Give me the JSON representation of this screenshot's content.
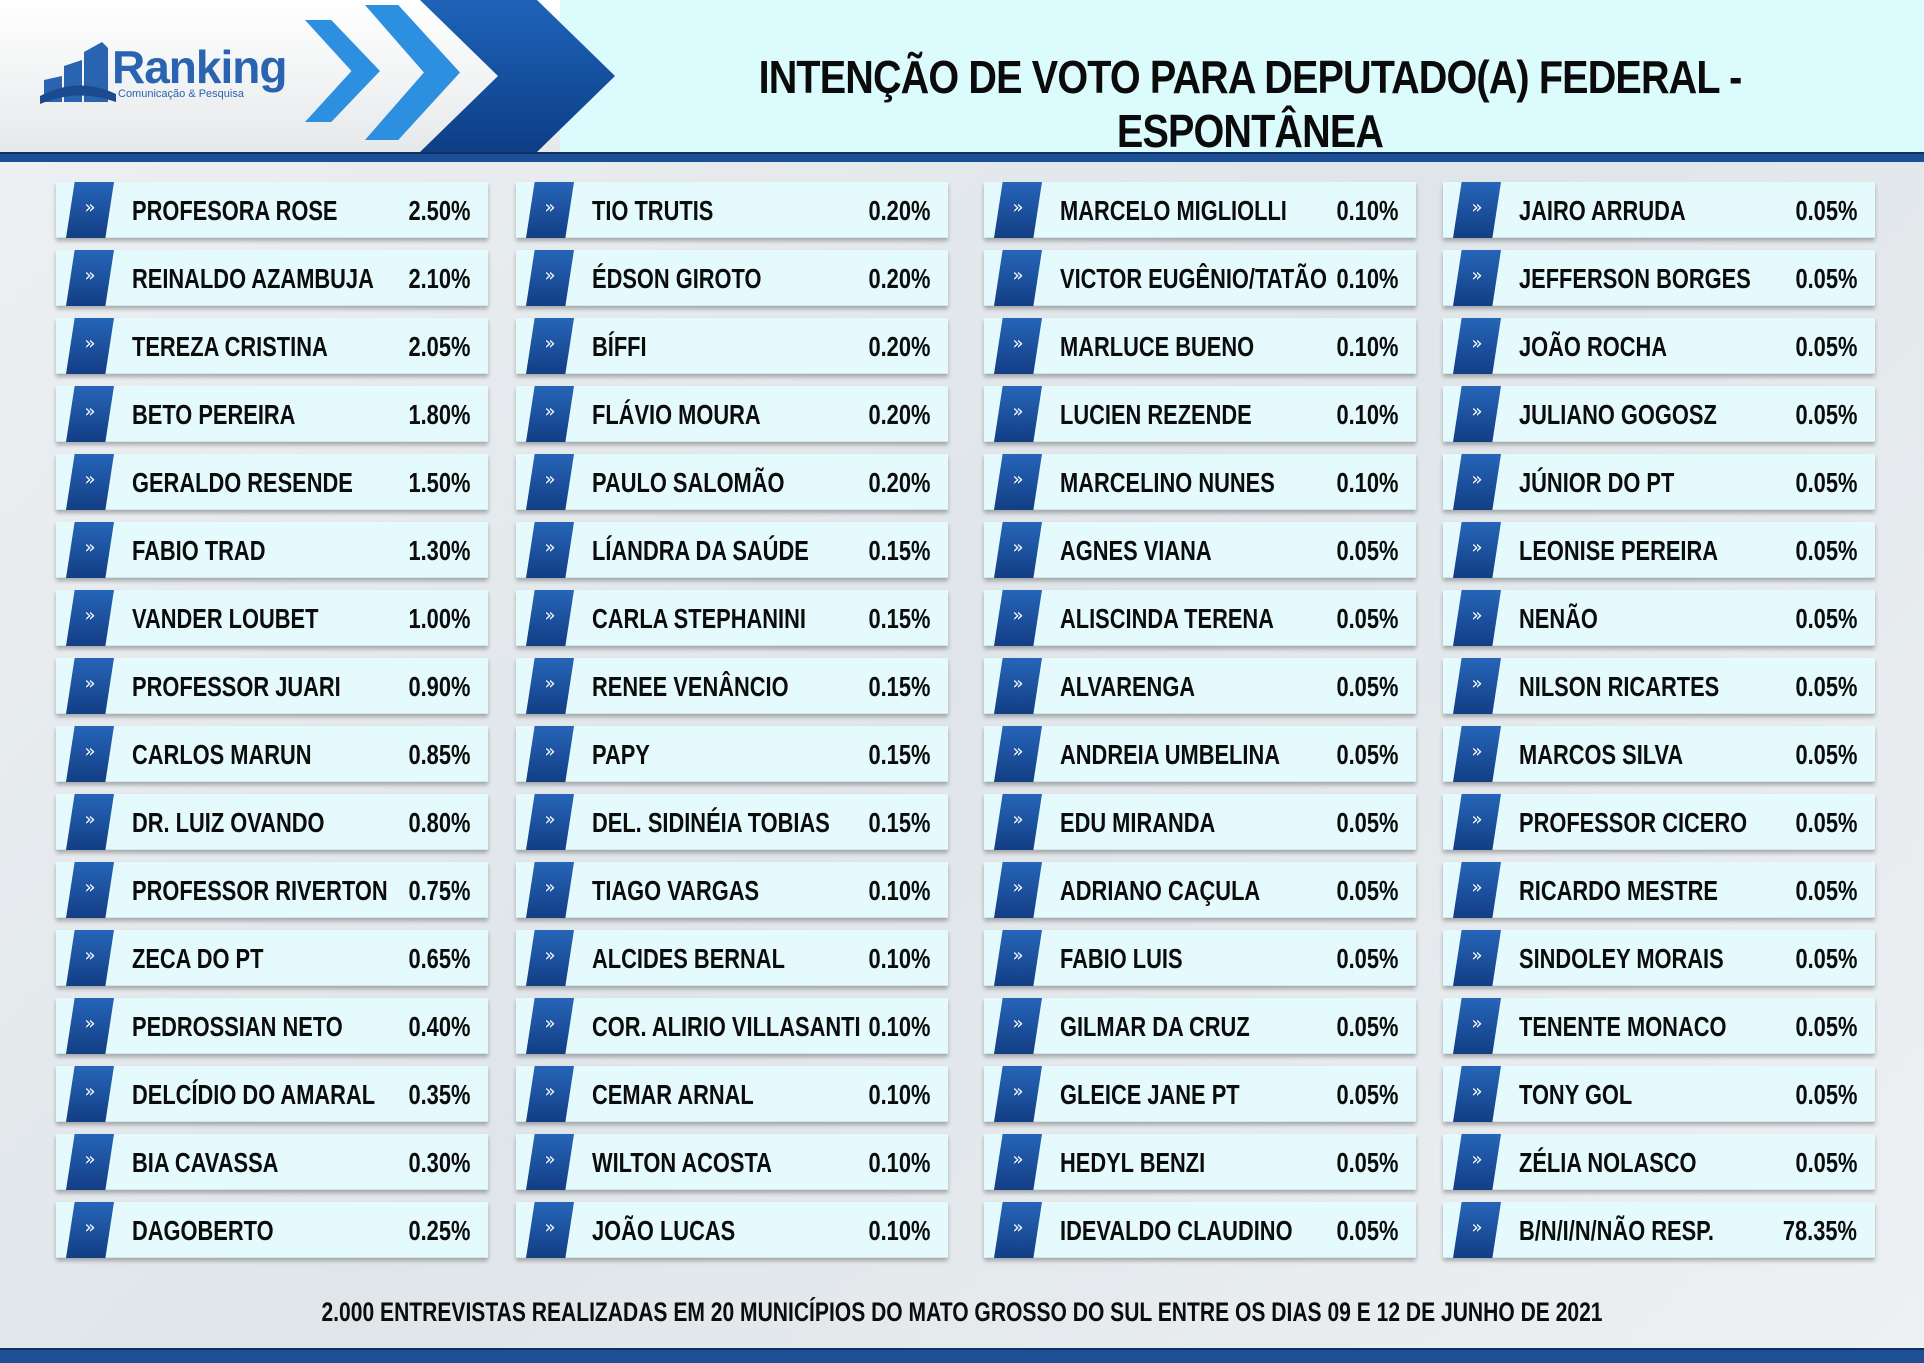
{
  "logo": {
    "name": "Ranking",
    "tagline": "Comunicação & Pesquisa"
  },
  "title": "INTENÇÃO DE VOTO PARA DEPUTADO(A) FEDERAL - ESPONTÂNEA",
  "row_marker": "»",
  "chart_data": {
    "type": "table",
    "title": "INTENÇÃO DE VOTO PARA DEPUTADO(A) FEDERAL - ESPONTÂNEA",
    "columns": [
      [
        {
          "name": "PROFESORA ROSE",
          "value": "2.50%"
        },
        {
          "name": "REINALDO AZAMBUJA",
          "value": "2.10%"
        },
        {
          "name": "TEREZA CRISTINA",
          "value": "2.05%"
        },
        {
          "name": "BETO PEREIRA",
          "value": "1.80%"
        },
        {
          "name": "GERALDO RESENDE",
          "value": "1.50%"
        },
        {
          "name": "FABIO TRAD",
          "value": "1.30%"
        },
        {
          "name": "VANDER LOUBET",
          "value": "1.00%"
        },
        {
          "name": "PROFESSOR JUARI",
          "value": "0.90%"
        },
        {
          "name": "CARLOS MARUN",
          "value": "0.85%"
        },
        {
          "name": "DR. LUIZ OVANDO",
          "value": "0.80%"
        },
        {
          "name": "PROFESSOR RIVERTON",
          "value": "0.75%"
        },
        {
          "name": "ZECA DO PT",
          "value": "0.65%"
        },
        {
          "name": "PEDROSSIAN NETO",
          "value": "0.40%"
        },
        {
          "name": "DELCÍDIO DO AMARAL",
          "value": "0.35%"
        },
        {
          "name": "BIA CAVASSA",
          "value": "0.30%"
        },
        {
          "name": "DAGOBERTO",
          "value": "0.25%"
        }
      ],
      [
        {
          "name": "TIO TRUTIS",
          "value": "0.20%"
        },
        {
          "name": "ÉDSON GIROTO",
          "value": "0.20%"
        },
        {
          "name": "BÍFFI",
          "value": "0.20%"
        },
        {
          "name": "FLÁVIO MOURA",
          "value": "0.20%"
        },
        {
          "name": "PAULO SALOMÃO",
          "value": "0.20%"
        },
        {
          "name": "LÍANDRA DA SAÚDE",
          "value": "0.15%"
        },
        {
          "name": "CARLA STEPHANINI",
          "value": "0.15%"
        },
        {
          "name": "RENEE VENÂNCIO",
          "value": "0.15%"
        },
        {
          "name": "PAPY",
          "value": "0.15%"
        },
        {
          "name": "DEL. SIDINÉIA TOBIAS",
          "value": "0.15%"
        },
        {
          "name": "TIAGO VARGAS",
          "value": "0.10%"
        },
        {
          "name": "ALCIDES BERNAL",
          "value": "0.10%"
        },
        {
          "name": "COR. ALIRIO VILLASANTI",
          "value": "0.10%"
        },
        {
          "name": "CEMAR ARNAL",
          "value": "0.10%"
        },
        {
          "name": "WILTON ACOSTA",
          "value": "0.10%"
        },
        {
          "name": "JOÃO LUCAS",
          "value": "0.10%"
        }
      ],
      [
        {
          "name": "MARCELO MIGLIOLLI",
          "value": "0.10%"
        },
        {
          "name": "VICTOR EUGÊNIO/TATÃO",
          "value": "0.10%"
        },
        {
          "name": "MARLUCE BUENO",
          "value": "0.10%"
        },
        {
          "name": "LUCIEN REZENDE",
          "value": "0.10%"
        },
        {
          "name": "MARCELINO NUNES",
          "value": "0.10%"
        },
        {
          "name": "AGNES VIANA",
          "value": "0.05%"
        },
        {
          "name": "ALISCINDA TERENA",
          "value": "0.05%"
        },
        {
          "name": "ALVARENGA",
          "value": "0.05%"
        },
        {
          "name": "ANDREIA UMBELINA",
          "value": "0.05%"
        },
        {
          "name": "EDU MIRANDA",
          "value": "0.05%"
        },
        {
          "name": "ADRIANO CAÇULA",
          "value": "0.05%"
        },
        {
          "name": "FABIO LUIS",
          "value": "0.05%"
        },
        {
          "name": "GILMAR DA CRUZ",
          "value": "0.05%"
        },
        {
          "name": "GLEICE JANE PT",
          "value": "0.05%"
        },
        {
          "name": "HEDYL BENZI",
          "value": "0.05%"
        },
        {
          "name": "IDEVALDO CLAUDINO",
          "value": "0.05%"
        }
      ],
      [
        {
          "name": "JAIRO ARRUDA",
          "value": "0.05%"
        },
        {
          "name": "JEFFERSON BORGES",
          "value": "0.05%"
        },
        {
          "name": "JOÃO ROCHA",
          "value": "0.05%"
        },
        {
          "name": "JULIANO GOGOSZ",
          "value": "0.05%"
        },
        {
          "name": "JÚNIOR DO PT",
          "value": "0.05%"
        },
        {
          "name": "LEONISE PEREIRA",
          "value": "0.05%"
        },
        {
          "name": "NENÃO",
          "value": "0.05%"
        },
        {
          "name": "NILSON RICARTES",
          "value": "0.05%"
        },
        {
          "name": "MARCOS SILVA",
          "value": "0.05%"
        },
        {
          "name": "PROFESSOR CICERO",
          "value": "0.05%"
        },
        {
          "name": "RICARDO MESTRE",
          "value": "0.05%"
        },
        {
          "name": "SINDOLEY MORAIS",
          "value": "0.05%"
        },
        {
          "name": "TENENTE MONACO",
          "value": "0.05%"
        },
        {
          "name": "TONY GOL",
          "value": "0.05%"
        },
        {
          "name": "ZÉLIA NOLASCO",
          "value": "0.05%"
        },
        {
          "name": "B/N/I/N/NÃO RESP.",
          "value": "78.35%"
        }
      ]
    ]
  },
  "footer": "2.000 ENTREVISTAS REALIZADAS EM 20 MUNICÍPIOS DO MATO GROSSO DO SUL ENTRE OS  DIAS 09 E 12 DE JUNHO DE 2021",
  "colors": {
    "accent": "#1c4f96",
    "row_bg": "#e4fafc",
    "header_bg": "#dcfbfd",
    "chevron": "#2c8fe0"
  }
}
